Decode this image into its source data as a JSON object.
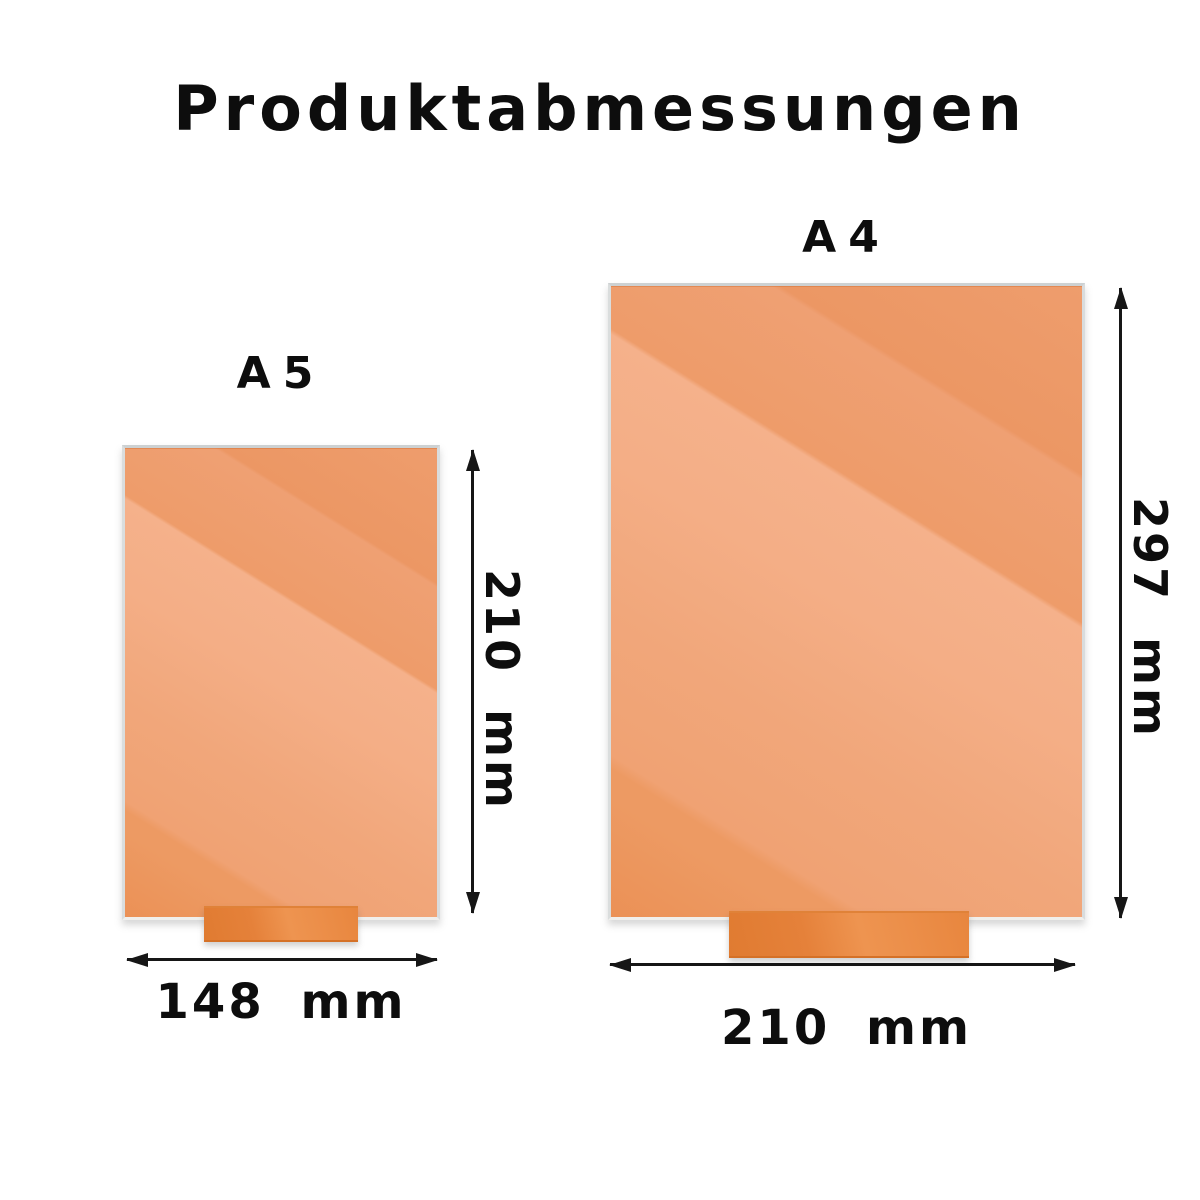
{
  "title": "Produktabmessungen",
  "panels": [
    {
      "name": "A5",
      "height": "210 mm",
      "width": "148 mm"
    },
    {
      "name": "A4",
      "height": "297 mm",
      "width": "210 mm"
    }
  ],
  "colors": {
    "background": "#ffffff",
    "plaque_light": "#f5b18b",
    "plaque_mid": "#f0a273",
    "plaque_dark": "#eb9156",
    "stand": "#e8863e",
    "edge": "#d9dcdd",
    "arrow_and_text": "#141414"
  }
}
